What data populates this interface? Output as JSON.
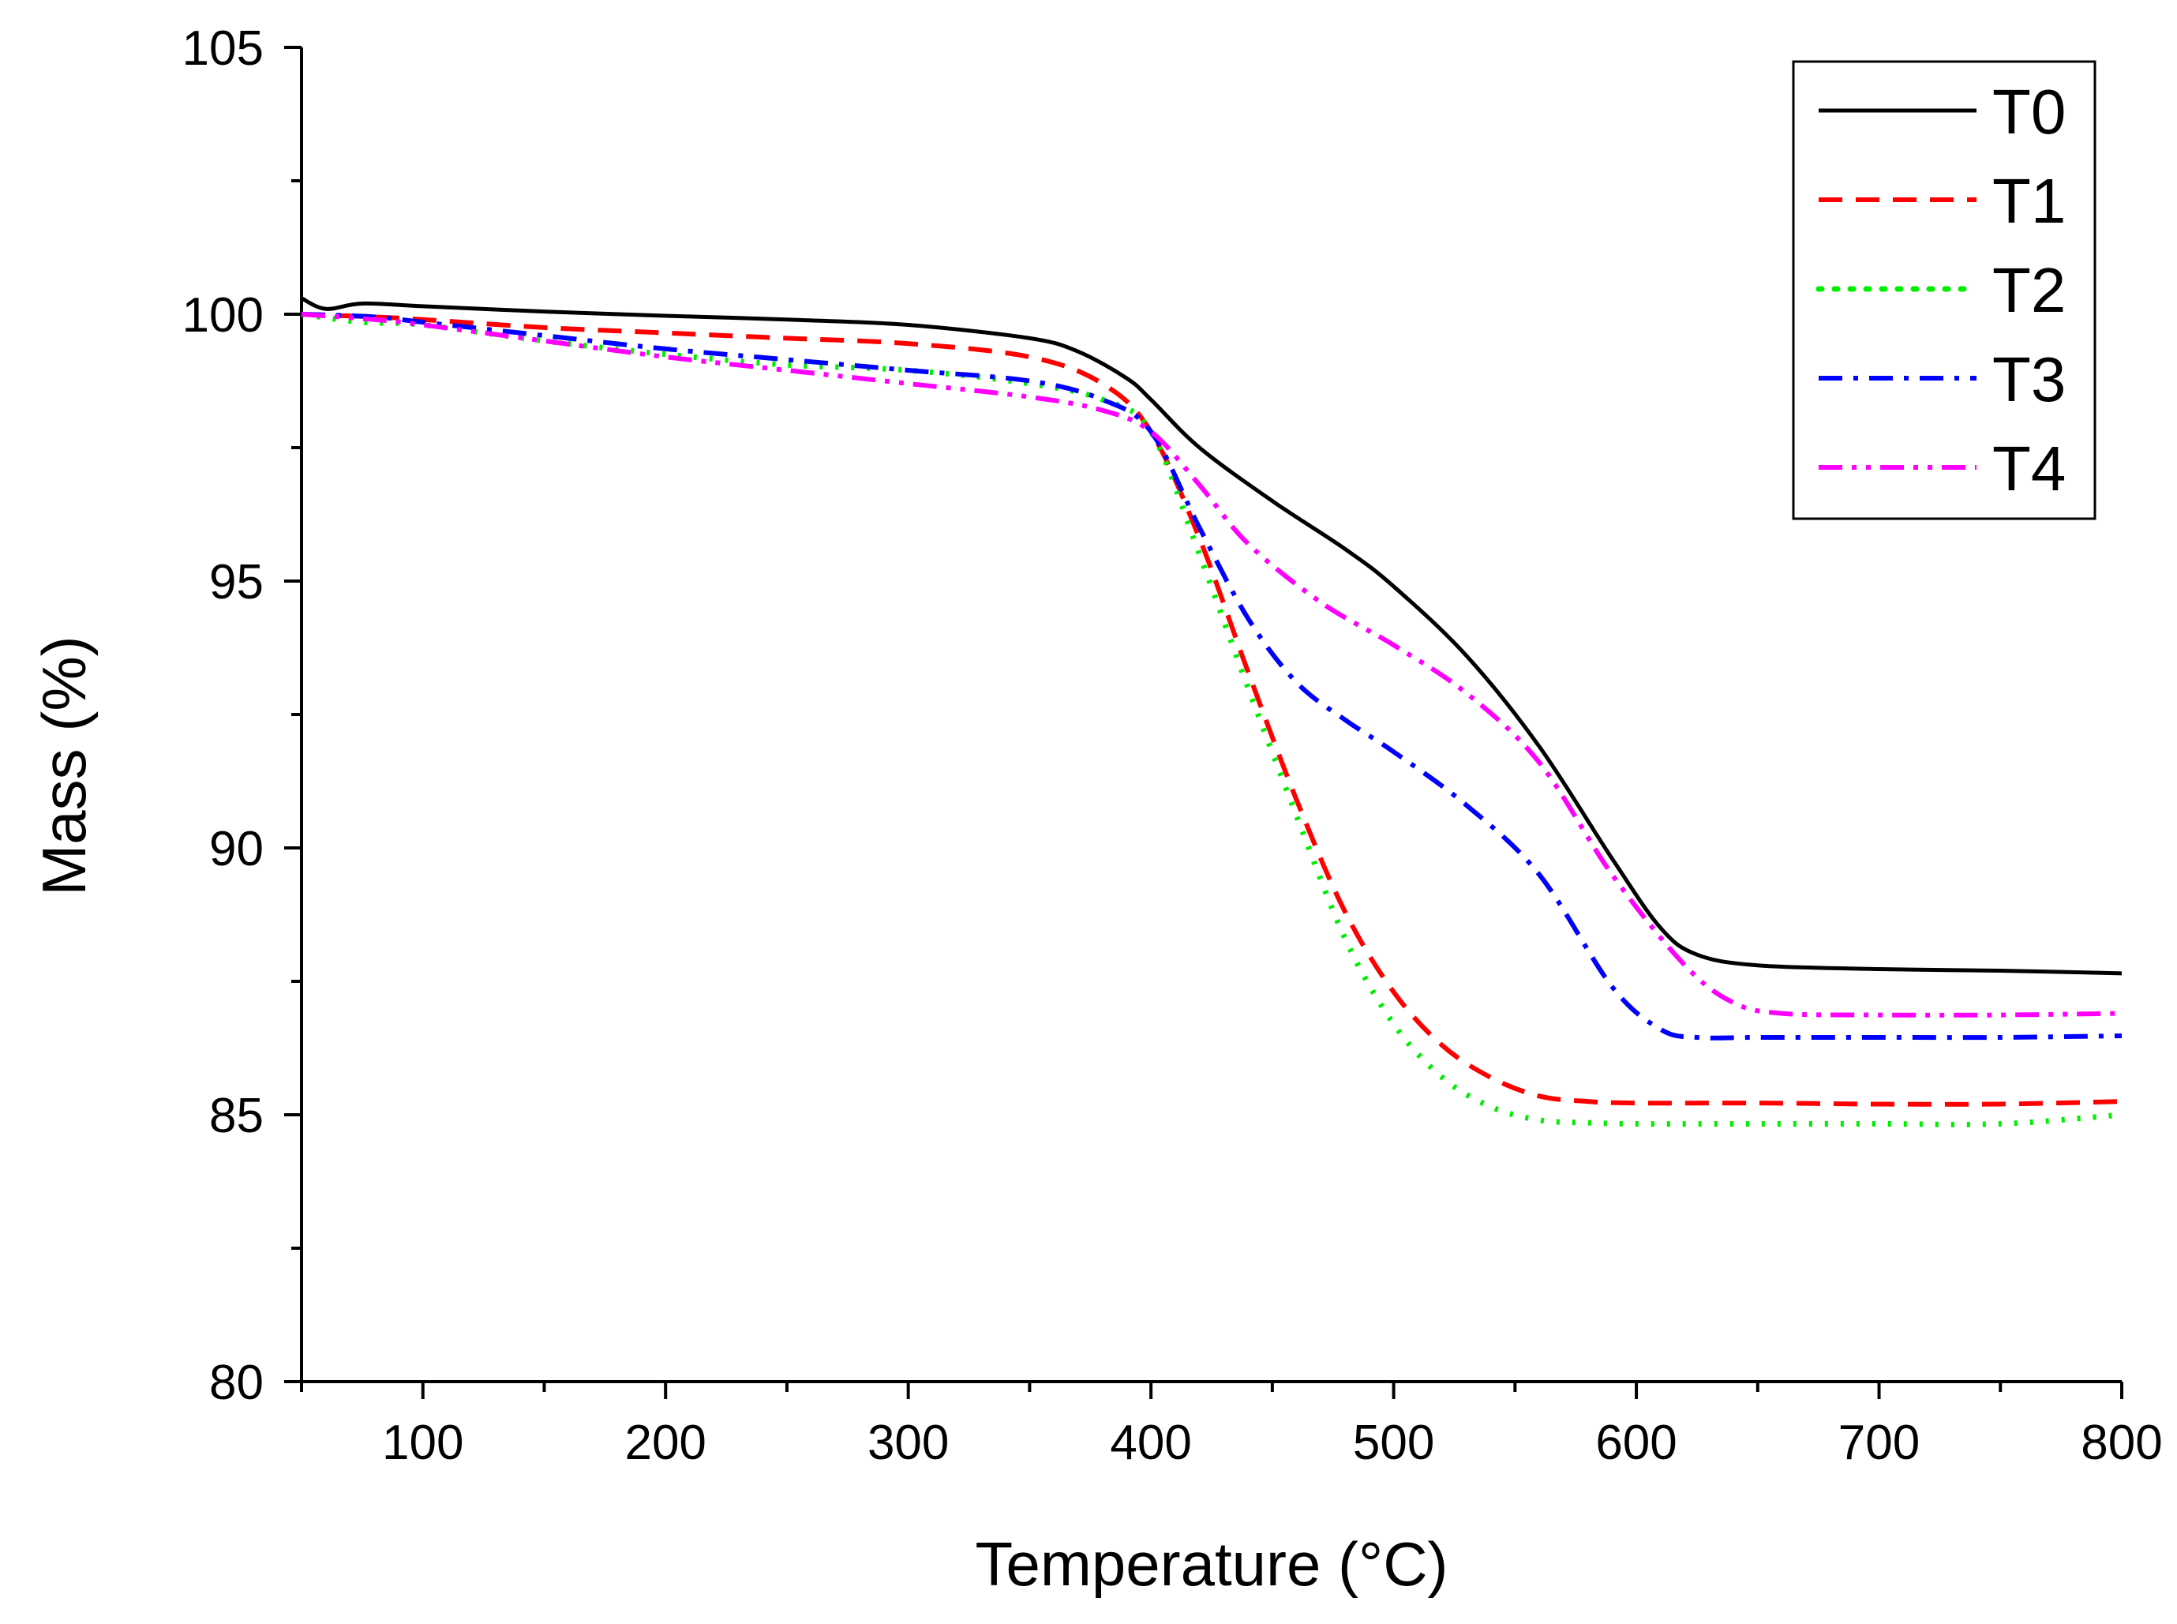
{
  "chart_data": {
    "type": "line",
    "title": "",
    "xlabel": "Temperature (°C)",
    "ylabel": "Mass (%)",
    "xlim": [
      50,
      800
    ],
    "ylim": [
      80,
      105
    ],
    "x_ticks": [
      100,
      200,
      300,
      400,
      500,
      600,
      700,
      800
    ],
    "x_minor_ticks": [
      50,
      150,
      250,
      350,
      450,
      550,
      650,
      750
    ],
    "y_ticks": [
      80,
      85,
      90,
      95,
      100,
      105
    ],
    "y_minor_ticks": [
      82.5,
      87.5,
      92.5,
      97.5,
      102.5
    ],
    "grid": false,
    "legend_position": "top-right",
    "series": [
      {
        "name": "T0",
        "color": "#000000",
        "style": "solid",
        "x": [
          50,
          60,
          75,
          100,
          150,
          200,
          250,
          300,
          350,
          370,
          390,
          400,
          420,
          450,
          480,
          500,
          530,
          560,
          590,
          610,
          625,
          650,
          700,
          750,
          800
        ],
        "y": [
          100.3,
          100.1,
          100.2,
          100.15,
          100.05,
          99.97,
          99.9,
          99.8,
          99.55,
          99.3,
          98.8,
          98.4,
          97.5,
          96.5,
          95.6,
          94.9,
          93.6,
          91.9,
          89.8,
          88.5,
          88.0,
          87.8,
          87.73,
          87.7,
          87.65
        ]
      },
      {
        "name": "T1",
        "color": "#ff0000",
        "style": "dashed",
        "x": [
          50,
          80,
          100,
          150,
          200,
          250,
          300,
          350,
          380,
          400,
          420,
          440,
          460,
          480,
          500,
          520,
          540,
          560,
          580,
          600,
          650,
          700,
          750,
          800
        ],
        "y": [
          100.0,
          99.95,
          99.9,
          99.75,
          99.65,
          99.55,
          99.45,
          99.2,
          98.7,
          97.8,
          95.8,
          93.3,
          90.9,
          88.8,
          87.3,
          86.3,
          85.7,
          85.35,
          85.25,
          85.22,
          85.22,
          85.2,
          85.2,
          85.25
        ]
      },
      {
        "name": "T2",
        "color": "#00ee00",
        "style": "dotted",
        "x": [
          50,
          75,
          100,
          150,
          200,
          250,
          300,
          350,
          380,
          400,
          420,
          440,
          460,
          480,
          500,
          520,
          540,
          560,
          580,
          600,
          650,
          700,
          750,
          800
        ],
        "y": [
          100.0,
          99.85,
          99.8,
          99.5,
          99.25,
          99.05,
          98.95,
          98.7,
          98.4,
          97.8,
          95.5,
          93.0,
          90.6,
          88.3,
          86.7,
          85.7,
          85.15,
          84.9,
          84.85,
          84.83,
          84.83,
          84.83,
          84.83,
          85.0
        ]
      },
      {
        "name": "T3",
        "color": "#0000ff",
        "style": "dashdot",
        "x": [
          50,
          80,
          100,
          150,
          200,
          250,
          300,
          350,
          380,
          400,
          420,
          440,
          460,
          480,
          500,
          530,
          560,
          590,
          610,
          625,
          650,
          700,
          750,
          800
        ],
        "y": [
          100.0,
          99.95,
          99.85,
          99.6,
          99.35,
          99.15,
          98.95,
          98.75,
          98.4,
          97.8,
          96.0,
          94.3,
          93.1,
          92.4,
          91.8,
          90.8,
          89.5,
          87.4,
          86.6,
          86.45,
          86.45,
          86.45,
          86.45,
          86.48
        ]
      },
      {
        "name": "T4",
        "color": "#ff00ff",
        "style": "dashdotdot",
        "x": [
          50,
          80,
          100,
          150,
          200,
          250,
          300,
          350,
          380,
          400,
          420,
          440,
          470,
          500,
          530,
          560,
          590,
          620,
          640,
          660,
          700,
          750,
          800
        ],
        "y": [
          100.0,
          99.9,
          99.8,
          99.5,
          99.2,
          98.95,
          98.7,
          98.45,
          98.2,
          97.8,
          96.8,
          95.7,
          94.6,
          93.8,
          92.9,
          91.6,
          89.5,
          87.8,
          87.1,
          86.9,
          86.87,
          86.87,
          86.9
        ]
      }
    ]
  }
}
